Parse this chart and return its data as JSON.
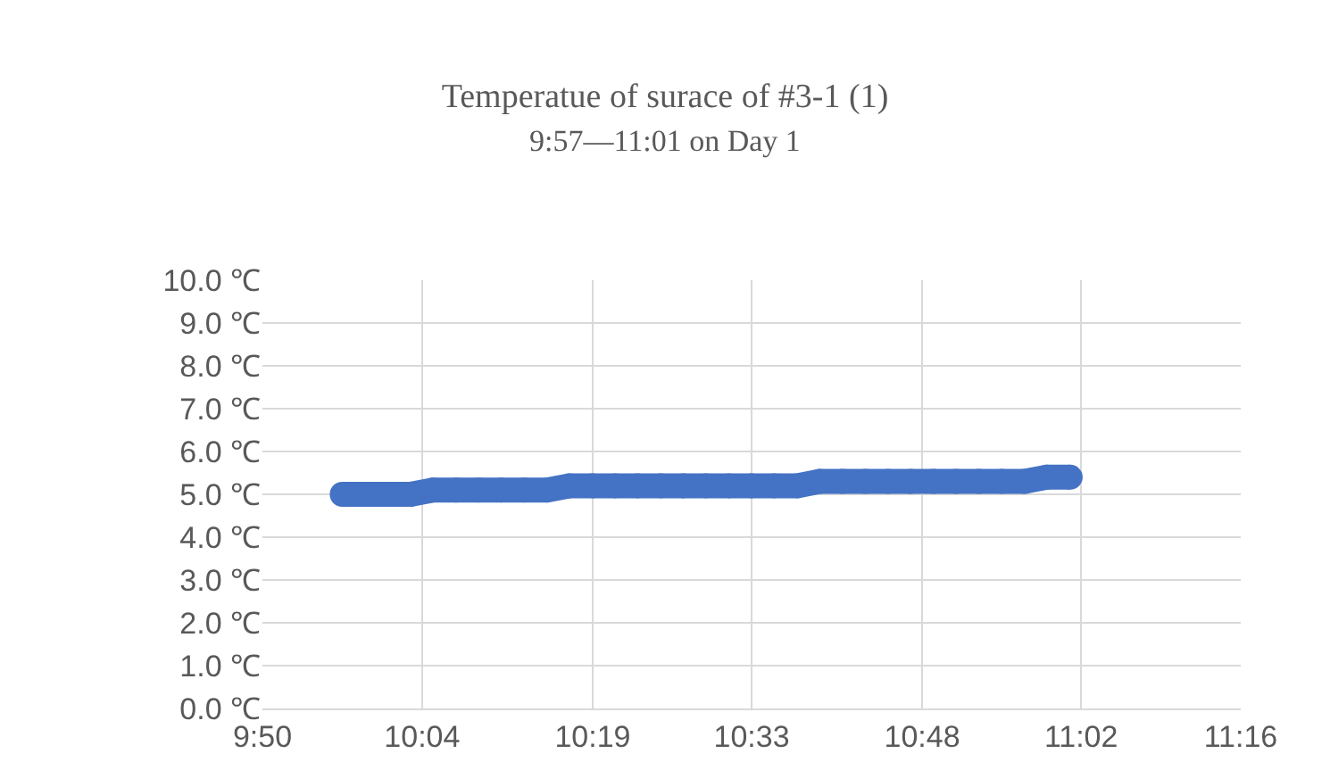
{
  "chart_data": {
    "type": "line",
    "title": "Temperatue of surace of #3-1 (1)",
    "subtitle": "9:57—11:01 on Day 1",
    "x": [
      9.95,
      9.983,
      10.017,
      10.05,
      10.083,
      10.117,
      10.15,
      10.183,
      10.217,
      10.25,
      10.283,
      10.317,
      10.35,
      10.383,
      10.417,
      10.45,
      10.483,
      10.517,
      10.55,
      10.583,
      10.617,
      10.65,
      10.683,
      10.717,
      10.75,
      10.783,
      10.817,
      10.85,
      10.883,
      10.917,
      10.95,
      10.983,
      11.017
    ],
    "series": [
      {
        "color": "#4472c4",
        "values": [
          5.0,
          5.0,
          5.0,
          5.0,
          5.1,
          5.1,
          5.1,
          5.1,
          5.1,
          5.1,
          5.2,
          5.2,
          5.2,
          5.2,
          5.2,
          5.2,
          5.2,
          5.2,
          5.2,
          5.2,
          5.2,
          5.3,
          5.3,
          5.3,
          5.3,
          5.3,
          5.3,
          5.3,
          5.3,
          5.3,
          5.3,
          5.4,
          5.4
        ]
      }
    ],
    "xlim": [
      9.833,
      11.267
    ],
    "xticks": [
      {
        "value": 9.833,
        "label": "9:50"
      },
      {
        "value": 10.067,
        "label": "10:04"
      },
      {
        "value": 10.317,
        "label": "10:19"
      },
      {
        "value": 10.55,
        "label": "10:33"
      },
      {
        "value": 10.8,
        "label": "10:48"
      },
      {
        "value": 11.033,
        "label": "11:02"
      },
      {
        "value": 11.267,
        "label": "11:16"
      }
    ],
    "ylim": [
      0,
      10
    ],
    "yticks": [
      {
        "value": 0,
        "label": "0.0 ℃"
      },
      {
        "value": 1,
        "label": "1.0 ℃"
      },
      {
        "value": 2,
        "label": "2.0 ℃"
      },
      {
        "value": 3,
        "label": "3.0 ℃"
      },
      {
        "value": 4,
        "label": "4.0 ℃"
      },
      {
        "value": 5,
        "label": "5.0 ℃"
      },
      {
        "value": 6,
        "label": "6.0 ℃"
      },
      {
        "value": 7,
        "label": "7.0 ℃"
      },
      {
        "value": 8,
        "label": "8.0 ℃"
      },
      {
        "value": 9,
        "label": "9.0 ℃"
      },
      {
        "value": 10,
        "label": "10.0 ℃"
      }
    ],
    "grid": true,
    "marker": "circle",
    "line_style": "solid"
  }
}
